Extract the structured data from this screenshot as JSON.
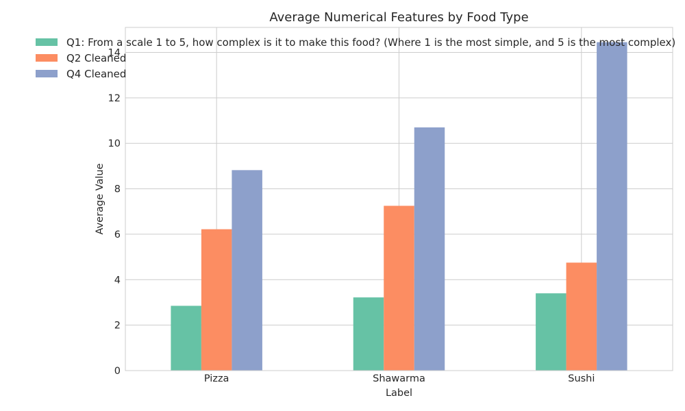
{
  "chart_data": {
    "type": "bar",
    "title": "Average Numerical Features by Food Type",
    "xlabel": "Label",
    "ylabel": "Average Value",
    "categories": [
      "Pizza",
      "Shawarma",
      "Sushi"
    ],
    "series": [
      {
        "name": "Q1: From a scale 1 to 5, how complex is it to make this food? (Where 1 is the most simple, and 5 is the most complex)",
        "values": [
          2.85,
          3.22,
          3.4
        ],
        "color": "#66c2a5"
      },
      {
        "name": "Q2 Cleaned",
        "values": [
          6.22,
          7.25,
          4.75
        ],
        "color": "#fc8d62"
      },
      {
        "name": "Q4 Cleaned",
        "values": [
          8.82,
          10.7,
          14.45
        ],
        "color": "#8da0cb"
      }
    ],
    "ylim": [
      0,
      15.1
    ],
    "yticks": [
      0,
      2,
      4,
      6,
      8,
      10,
      12,
      14
    ],
    "grid": true,
    "legend_location": "top-left"
  }
}
